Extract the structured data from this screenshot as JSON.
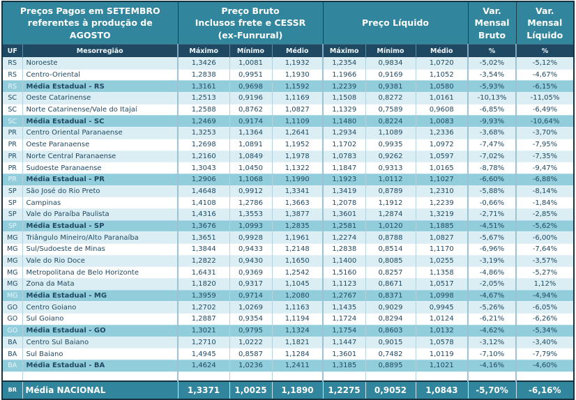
{
  "title": {
    "period": "Preços Pagos em SETEMBRO\nreferentes à produção de\nAGOSTO",
    "preco_bruto": "Preço Bruto\nInclusos frete e CESSR\n(ex-Funrural)",
    "preco_liquido": "Preço Líquido",
    "var_mensal_bruto": "Var.\nMensal\nBruto",
    "var_mensal_liquido": "Var.\nMensal\nLíquido"
  },
  "colors": {
    "header_teal": "#31859C",
    "subheader_navy": "#1F4962",
    "row_light_blue": "#DAEEF3",
    "row_white": "#FFFFFF",
    "row_state_average": "#92CDDC",
    "text_navy": "#1F4962",
    "text_white": "#FFFFFF"
  },
  "chart_data": {
    "type": "table",
    "column_headers": {
      "uf": "UF",
      "mesorregiao": "Mesorregião",
      "maximo_bruto": "Máximo",
      "minimo_bruto": "Mínimo",
      "medio_bruto": "Médio",
      "maximo_liquido": "Máximo",
      "minimo_liquido": "Mínimo",
      "medio_liquido": "Médio",
      "pct_bruto": "%",
      "pct_liquido": "%"
    },
    "value_keys": [
      "maximo_bruto",
      "minimo_bruto",
      "medio_bruto",
      "maximo_liquido",
      "minimo_liquido",
      "medio_liquido",
      "var_mensal_bruto",
      "var_mensal_liquido"
    ],
    "rows": [
      {
        "uf": "RS",
        "mesorregiao": "Noroeste",
        "tipo": "light",
        "values": [
          "1,3426",
          "1,0081",
          "1,1932",
          "1,2354",
          "0,9834",
          "1,0720",
          "-5,02%",
          "-5,12%"
        ]
      },
      {
        "uf": "RS",
        "mesorregiao": "Centro-Oriental",
        "tipo": "white",
        "values": [
          "1,2838",
          "0,9951",
          "1,1930",
          "1,1966",
          "0,9169",
          "1,1052",
          "-3,54%",
          "-4,67%"
        ]
      },
      {
        "uf": "RS",
        "mesorregiao": "Média Estadual - RS",
        "tipo": "media",
        "values": [
          "1,3161",
          "0,9698",
          "1,1592",
          "1,2239",
          "0,9381",
          "1,0580",
          "-5,93%",
          "-6,15%"
        ]
      },
      {
        "uf": "SC",
        "mesorregiao": "Oeste Catarinense",
        "tipo": "light",
        "values": [
          "1,2513",
          "0,9196",
          "1,1169",
          "1,1508",
          "0,8272",
          "1,0161",
          "-10,13%",
          "-11,05%"
        ]
      },
      {
        "uf": "SC",
        "mesorregiao": "Norte Catarinense/Vale do Itajaí",
        "tipo": "white",
        "values": [
          "1,2588",
          "0,8762",
          "1,0827",
          "1,1329",
          "0,7589",
          "0,9608",
          "-6,85%",
          "-6,49%"
        ]
      },
      {
        "uf": "SC",
        "mesorregiao": "Média Estadual - SC",
        "tipo": "media",
        "values": [
          "1,2469",
          "0,9174",
          "1,1109",
          "1,1480",
          "0,8224",
          "1,0083",
          "-9,93%",
          "-10,64%"
        ]
      },
      {
        "uf": "PR",
        "mesorregiao": "Centro Oriental Paranaense",
        "tipo": "light",
        "values": [
          "1,3253",
          "1,1364",
          "1,2641",
          "1,2934",
          "1,1089",
          "1,2336",
          "-3,68%",
          "-3,70%"
        ]
      },
      {
        "uf": "PR",
        "mesorregiao": "Oeste Paranaense",
        "tipo": "white",
        "values": [
          "1,2698",
          "1,0891",
          "1,1952",
          "1,1702",
          "0,9935",
          "1,0972",
          "-7,47%",
          "-7,95%"
        ]
      },
      {
        "uf": "PR",
        "mesorregiao": "Norte Central Paranaense",
        "tipo": "light",
        "values": [
          "1,2160",
          "1,0849",
          "1,1978",
          "1,0783",
          "0,9262",
          "1,0597",
          "-7,02%",
          "-7,35%"
        ]
      },
      {
        "uf": "PR",
        "mesorregiao": "Sudoeste Paranaense",
        "tipo": "white",
        "values": [
          "1,3043",
          "1,0450",
          "1,1322",
          "1,1847",
          "0,9313",
          "1,0165",
          "-8,78%",
          "-9,47%"
        ]
      },
      {
        "uf": "PR",
        "mesorregiao": "Média Estadual - PR",
        "tipo": "media",
        "values": [
          "1,2906",
          "1,1068",
          "1,1990",
          "1,1923",
          "1,0112",
          "1,1027",
          "-6,60%",
          "-6,88%"
        ]
      },
      {
        "uf": "SP",
        "mesorregiao": "São José do Rio Preto",
        "tipo": "light",
        "values": [
          "1,4648",
          "0,9912",
          "1,3341",
          "1,3419",
          "0,8789",
          "1,2310",
          "-5,88%",
          "-8,14%"
        ]
      },
      {
        "uf": "SP",
        "mesorregiao": "Campinas",
        "tipo": "white",
        "values": [
          "1,4108",
          "1,2786",
          "1,3663",
          "1,2078",
          "1,1912",
          "1,2239",
          "-0,66%",
          "-1,84%"
        ]
      },
      {
        "uf": "SP",
        "mesorregiao": "Vale do Paraíba Paulista",
        "tipo": "light",
        "values": [
          "1,4316",
          "1,3553",
          "1,3877",
          "1,3601",
          "1,2874",
          "1,3219",
          "-2,71%",
          "-2,85%"
        ]
      },
      {
        "uf": "SP",
        "mesorregiao": "Média Estadual - SP",
        "tipo": "media",
        "values": [
          "1,3676",
          "1,0993",
          "1,2835",
          "1,2581",
          "1,0120",
          "1,1885",
          "-4,51%",
          "-5,62%"
        ]
      },
      {
        "uf": "MG",
        "mesorregiao": "Triângulo Mineiro/Alto Paranaíba",
        "tipo": "light",
        "values": [
          "1,3651",
          "0,9928",
          "1,1961",
          "1,2274",
          "0,8788",
          "1,0827",
          "-5,67%",
          "-6,00%"
        ]
      },
      {
        "uf": "MG",
        "mesorregiao": "Sul/Sudoeste de Minas",
        "tipo": "white",
        "values": [
          "1,3844",
          "0,9433",
          "1,2148",
          "1,2838",
          "0,8514",
          "1,1170",
          "-6,96%",
          "-7,64%"
        ]
      },
      {
        "uf": "MG",
        "mesorregiao": "Vale do Rio Doce",
        "tipo": "light",
        "values": [
          "1,2822",
          "0,9430",
          "1,1650",
          "1,1400",
          "0,8085",
          "1,0255",
          "-3,19%",
          "-3,57%"
        ]
      },
      {
        "uf": "MG",
        "mesorregiao": "Metropolitana de Belo Horizonte",
        "tipo": "white",
        "values": [
          "1,6431",
          "0,9369",
          "1,2542",
          "1,5160",
          "0,8257",
          "1,1358",
          "-4,86%",
          "-5,27%"
        ]
      },
      {
        "uf": "MG",
        "mesorregiao": "Zona da Mata",
        "tipo": "light",
        "values": [
          "1,1820",
          "0,9317",
          "1,1045",
          "1,1123",
          "0,8671",
          "1,0517",
          "-2,05%",
          "1,12%"
        ]
      },
      {
        "uf": "MG",
        "mesorregiao": "Média Estadual - MG",
        "tipo": "media",
        "values": [
          "1,3959",
          "0,9714",
          "1,2080",
          "1,2767",
          "0,8371",
          "1,0998",
          "-4,67%",
          "-4,94%"
        ]
      },
      {
        "uf": "GO",
        "mesorregiao": "Centro Goiano",
        "tipo": "light",
        "values": [
          "1,2702",
          "1,0269",
          "1,1163",
          "1,1435",
          "0,9029",
          "0,9945",
          "-5,26%",
          "-6,05%"
        ]
      },
      {
        "uf": "GO",
        "mesorregiao": "Sul Goiano",
        "tipo": "white",
        "values": [
          "1,2887",
          "0,9354",
          "1,1194",
          "1,1724",
          "0,8294",
          "1,0124",
          "-6,21%",
          "-6,26%"
        ]
      },
      {
        "uf": "GO",
        "mesorregiao": "Média Estadual - GO",
        "tipo": "media",
        "values": [
          "1,3021",
          "0,9795",
          "1,1324",
          "1,1754",
          "0,8603",
          "1,0132",
          "-4,62%",
          "-5,34%"
        ]
      },
      {
        "uf": "BA",
        "mesorregiao": "Centro Sul Baiano",
        "tipo": "light",
        "values": [
          "1,2710",
          "1,0222",
          "1,1821",
          "1,1447",
          "0,9015",
          "1,0578",
          "-3,12%",
          "-3,40%"
        ]
      },
      {
        "uf": "BA",
        "mesorregiao": "Sul Baiano",
        "tipo": "white",
        "values": [
          "1,4945",
          "0,8587",
          "1,1284",
          "1,3601",
          "0,7482",
          "1,0119",
          "-7,10%",
          "-7,79%"
        ]
      },
      {
        "uf": "BA",
        "mesorregiao": "Média Estadual - BA",
        "tipo": "media",
        "values": [
          "1,4624",
          "1,0236",
          "1,2411",
          "1,3185",
          "0,8895",
          "1,1021",
          "-4,16%",
          "-4,60%"
        ]
      }
    ],
    "national_row": {
      "uf": "BR",
      "mesorregiao": "Média NACIONAL",
      "values": [
        "1,3371",
        "1,0025",
        "1,1890",
        "1,2275",
        "0,9052",
        "1,0843",
        "-5,70%",
        "-6,16%"
      ]
    }
  }
}
